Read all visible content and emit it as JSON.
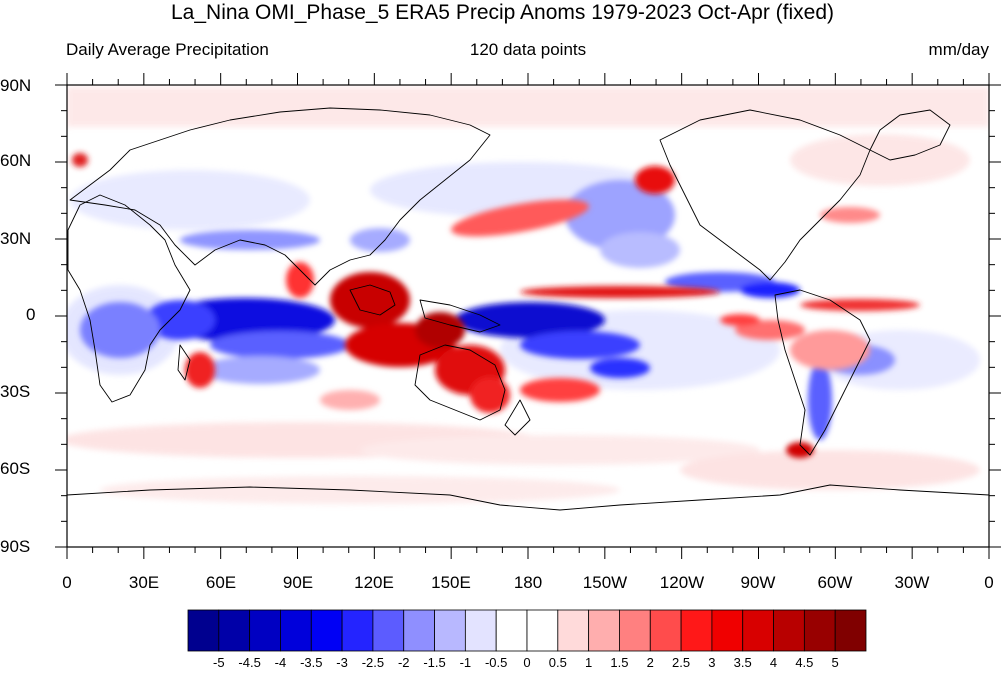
{
  "title": "La_Nina OMI_Phase_5 ERA5 Precip Anoms 1979-2023 Oct-Apr (fixed)",
  "subtitle_left": "Daily Average Precipitation",
  "subtitle_center": "120 data points",
  "subtitle_right": "mm/day",
  "lat_labels": [
    "90N",
    "60N",
    "30N",
    "0",
    "30S",
    "60S",
    "90S"
  ],
  "lon_labels": [
    "0",
    "30E",
    "60E",
    "90E",
    "120E",
    "150E",
    "180",
    "150W",
    "120W",
    "90W",
    "60W",
    "30W",
    "0"
  ],
  "colorbar": {
    "labels": [
      "-5",
      "-4.5",
      "-4",
      "-3.5",
      "-3",
      "-2.5",
      "-2",
      "-1.5",
      "-1",
      "-0.5",
      "0",
      "0.5",
      "1",
      "1.5",
      "2",
      "2.5",
      "3",
      "3.5",
      "4",
      "4.5",
      "5"
    ],
    "colors": [
      "#00008f",
      "#0000a8",
      "#0000c2",
      "#0000db",
      "#0000f5",
      "#2424ff",
      "#5c5cff",
      "#8f8fff",
      "#b8b8ff",
      "#e3e3ff",
      "#ffffff",
      "#ffffff",
      "#ffdada",
      "#ffaeae",
      "#ff8080",
      "#ff4c4c",
      "#ff1818",
      "#f00000",
      "#d80000",
      "#b80000",
      "#980000",
      "#800000"
    ]
  },
  "colors": {
    "ocean": "#ffffff",
    "coast": "#000000"
  }
}
